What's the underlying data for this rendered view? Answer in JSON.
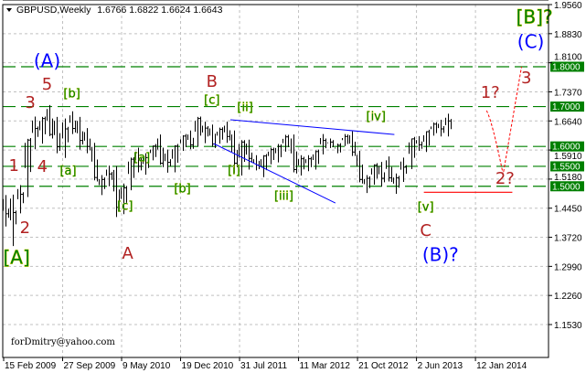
{
  "header": {
    "symbol_timeframe": "GBPUSD,Weekly",
    "ohlc": "1.6766 1.6822 1.6624 1.6643"
  },
  "watermark": "forDmitry@yahoo.com",
  "colors": {
    "background": "#ffffff",
    "bars": "#000000",
    "grid": "#c0c0c0",
    "level_lines": "#008000",
    "trendlines": "#0000ff",
    "support_line": "#ff0000",
    "projection": "#ff0000",
    "wave_green": "#008000",
    "wave_red": "#b22222",
    "wave_blue": "#0000ff"
  },
  "chart_data": {
    "type": "ohlc",
    "title": "GBPUSD,Weekly",
    "ylim": [
      1.153,
      1.956
    ],
    "grid": true,
    "y_ticks": [
      "1.9560",
      "1.8830",
      "1.8100",
      "1.7370",
      "1.6640",
      "1.5910",
      "1.5180",
      "1.4450",
      "1.3720",
      "1.2990",
      "1.2260",
      "1.1530"
    ],
    "x_ticks": [
      {
        "date": "2009-02-15",
        "label": "15 Feb 2009"
      },
      {
        "date": "2009-09-27",
        "label": "27 Sep 2009"
      },
      {
        "date": "2010-05-09",
        "label": "9 May 2010"
      },
      {
        "date": "2010-12-19",
        "label": "19 Dec 2010"
      },
      {
        "date": "2011-07-31",
        "label": "31 Jul 2011"
      },
      {
        "date": "2012-03-11",
        "label": "11 Mar 2012"
      },
      {
        "date": "2012-10-21",
        "label": "21 Oct 2012"
      },
      {
        "date": "2013-06-02",
        "label": "2 Jun 2013"
      },
      {
        "date": "2014-01-12",
        "label": "12 Jan 2014"
      }
    ],
    "bars_columns": [
      "date",
      "high",
      "low",
      "close"
    ],
    "bars": [
      [
        "2009-02-22",
        1.478,
        1.399,
        1.431
      ],
      [
        "2009-03-22",
        1.479,
        1.35,
        1.434
      ],
      [
        "2009-04-19",
        1.503,
        1.432,
        1.48
      ],
      [
        "2009-05-17",
        1.619,
        1.473,
        1.616
      ],
      [
        "2009-06-14",
        1.675,
        1.593,
        1.645
      ],
      [
        "2009-07-12",
        1.674,
        1.607,
        1.67
      ],
      [
        "2009-08-09",
        1.704,
        1.626,
        1.63
      ],
      [
        "2009-09-06",
        1.674,
        1.583,
        1.599
      ],
      [
        "2009-10-04",
        1.67,
        1.571,
        1.644
      ],
      [
        "2009-11-01",
        1.688,
        1.631,
        1.645
      ],
      [
        "2009-11-29",
        1.674,
        1.592,
        1.615
      ],
      [
        "2009-12-27",
        1.646,
        1.583,
        1.6
      ],
      [
        "2010-01-24",
        1.609,
        1.515,
        1.522
      ],
      [
        "2010-02-21",
        1.528,
        1.478,
        1.517
      ],
      [
        "2010-03-21",
        1.552,
        1.5,
        1.531
      ],
      [
        "2010-04-18",
        1.551,
        1.423,
        1.447
      ],
      [
        "2010-05-16",
        1.507,
        1.43,
        1.496
      ],
      [
        "2010-06-13",
        1.572,
        1.49,
        1.568
      ],
      [
        "2010-07-11",
        1.597,
        1.535,
        1.55
      ],
      [
        "2010-08-08",
        1.583,
        1.529,
        1.572
      ],
      [
        "2010-09-05",
        1.602,
        1.565,
        1.601
      ],
      [
        "2010-10-03",
        1.63,
        1.554,
        1.558
      ],
      [
        "2010-10-31",
        1.592,
        1.534,
        1.56
      ],
      [
        "2010-11-28",
        1.603,
        1.535,
        1.601
      ],
      [
        "2010-12-26",
        1.628,
        1.589,
        1.626
      ],
      [
        "2011-01-23",
        1.64,
        1.593,
        1.604
      ],
      [
        "2011-02-20",
        1.674,
        1.6,
        1.67
      ],
      [
        "2011-03-20",
        1.662,
        1.608,
        1.646
      ],
      [
        "2011-04-17",
        1.655,
        1.599,
        1.606
      ],
      [
        "2011-05-15",
        1.647,
        1.607,
        1.643
      ],
      [
        "2011-06-12",
        1.662,
        1.609,
        1.625
      ],
      [
        "2011-07-10",
        1.64,
        1.533,
        1.558
      ],
      [
        "2011-08-07",
        1.616,
        1.527,
        1.611
      ],
      [
        "2011-09-04",
        1.617,
        1.542,
        1.57
      ],
      [
        "2011-10-02",
        1.578,
        1.54,
        1.553
      ],
      [
        "2011-10-30",
        1.578,
        1.523,
        1.576
      ],
      [
        "2011-11-27",
        1.597,
        1.555,
        1.592
      ],
      [
        "2011-12-25",
        1.606,
        1.56,
        1.6
      ],
      [
        "2012-01-22",
        1.629,
        1.587,
        1.624
      ],
      [
        "2012-02-19",
        1.63,
        1.535,
        1.542
      ],
      [
        "2012-03-18",
        1.578,
        1.527,
        1.569
      ],
      [
        "2012-04-15",
        1.578,
        1.538,
        1.569
      ],
      [
        "2012-05-13",
        1.59,
        1.542,
        1.587
      ],
      [
        "2012-06-10",
        1.631,
        1.58,
        1.615
      ],
      [
        "2012-07-08",
        1.62,
        1.596,
        1.611
      ],
      [
        "2012-08-05",
        1.607,
        1.583,
        1.603
      ],
      [
        "2012-09-02",
        1.631,
        1.601,
        1.625
      ],
      [
        "2012-09-30",
        1.638,
        1.576,
        1.586
      ],
      [
        "2012-10-28",
        1.589,
        1.51,
        1.517
      ],
      [
        "2012-11-25",
        1.528,
        1.483,
        1.52
      ],
      [
        "2012-12-23",
        1.555,
        1.504,
        1.553
      ],
      [
        "2013-01-20",
        1.561,
        1.499,
        1.52
      ],
      [
        "2013-02-17",
        1.575,
        1.512,
        1.521
      ],
      [
        "2013-03-17",
        1.532,
        1.481,
        1.521
      ],
      [
        "2013-04-14",
        1.572,
        1.511,
        1.548
      ],
      [
        "2013-05-12",
        1.62,
        1.543,
        1.619
      ],
      [
        "2013-06-09",
        1.626,
        1.589,
        1.604
      ],
      [
        "2013-07-07",
        1.638,
        1.586,
        1.637
      ],
      [
        "2013-08-04",
        1.66,
        1.627,
        1.656
      ],
      [
        "2013-09-01",
        1.667,
        1.625,
        1.644
      ],
      [
        "2013-09-29",
        1.682,
        1.625,
        1.664
      ]
    ],
    "levels": [
      {
        "price": 1.8,
        "label": "1.8000"
      },
      {
        "price": 1.7,
        "label": "1.7000"
      },
      {
        "price": 1.6,
        "label": "1.6000"
      },
      {
        "price": 1.55,
        "label": "1.5500"
      },
      {
        "price": 1.5,
        "label": "1.5000"
      }
    ],
    "trendlines": [
      {
        "from": {
          "date": "2011-06-26",
          "price": 1.667
        },
        "to": {
          "date": "2013-03-10",
          "price": 1.63
        }
      },
      {
        "from": {
          "date": "2011-04-24",
          "price": 1.607
        },
        "to": {
          "date": "2012-07-29",
          "price": 1.458
        }
      }
    ],
    "support_line": {
      "from": {
        "date": "2013-06-30",
        "price": 1.485
      },
      "to": {
        "date": "2014-06-01",
        "price": 1.485
      }
    },
    "projection": [
      {
        "date": "2014-02-23",
        "price": 1.69
      },
      {
        "date": "2014-03-16",
        "price": 1.665
      },
      {
        "date": "2014-04-27",
        "price": 1.53
      },
      {
        "date": "2014-07-06",
        "price": 1.8
      }
    ],
    "annotations": [
      {
        "text": "[A]",
        "date": "2009-04-05",
        "price": 1.318,
        "style": "green-big"
      },
      {
        "text": "2",
        "date": "2009-05-07",
        "price": 1.394,
        "style": "red"
      },
      {
        "text": "1",
        "date": "2009-03-26",
        "price": 1.55,
        "style": "red"
      },
      {
        "text": "4",
        "date": "2009-07-12",
        "price": 1.548,
        "style": "red"
      },
      {
        "text": "3",
        "date": "2009-05-27",
        "price": 1.708,
        "style": "red"
      },
      {
        "text": "5",
        "date": "2009-07-30",
        "price": 1.754,
        "style": "red"
      },
      {
        "text": "(A)",
        "date": "2009-07-30",
        "price": 1.812,
        "style": "blue"
      },
      {
        "text": "[b]",
        "date": "2009-11-01",
        "price": 1.731,
        "style": "green"
      },
      {
        "text": "[a]",
        "date": "2009-10-18",
        "price": 1.537,
        "style": "green"
      },
      {
        "text": "[a]",
        "date": "2010-07-25",
        "price": 1.571,
        "style": "green"
      },
      {
        "text": "[b]",
        "date": "2010-12-26",
        "price": 1.493,
        "style": "green"
      },
      {
        "text": "[c]",
        "date": "2010-05-22",
        "price": 1.449,
        "style": "green"
      },
      {
        "text": "A",
        "date": "2010-06-01",
        "price": 1.33,
        "style": "red"
      },
      {
        "text": "B",
        "date": "2011-04-17",
        "price": 1.761,
        "style": "red"
      },
      {
        "text": "[c]",
        "date": "2011-04-17",
        "price": 1.715,
        "style": "green"
      },
      {
        "text": "[ii]",
        "date": "2011-08-21",
        "price": 1.697,
        "style": "green"
      },
      {
        "text": "[i]",
        "date": "2011-07-10",
        "price": 1.539,
        "style": "green"
      },
      {
        "text": "[iii]",
        "date": "2012-01-15",
        "price": 1.474,
        "style": "green"
      },
      {
        "text": "[iv]",
        "date": "2012-12-30",
        "price": 1.674,
        "style": "green"
      },
      {
        "text": "[v]",
        "date": "2013-07-07",
        "price": 1.447,
        "style": "green"
      },
      {
        "text": "C",
        "date": "2013-07-07",
        "price": 1.387,
        "style": "red"
      },
      {
        "text": "(B)?",
        "date": "2013-09-01",
        "price": 1.325,
        "style": "blue"
      },
      {
        "text": "1?",
        "date": "2014-03-09",
        "price": 1.734,
        "style": "red"
      },
      {
        "text": "2?",
        "date": "2014-05-04",
        "price": 1.518,
        "style": "red"
      },
      {
        "text": "3",
        "date": "2014-07-24",
        "price": 1.77,
        "style": "red"
      },
      {
        "text": "[B]?",
        "date": "2014-08-24",
        "price": 1.922,
        "style": "green-big"
      },
      {
        "text": "(C)",
        "date": "2014-08-10",
        "price": 1.86,
        "style": "blue"
      }
    ]
  }
}
